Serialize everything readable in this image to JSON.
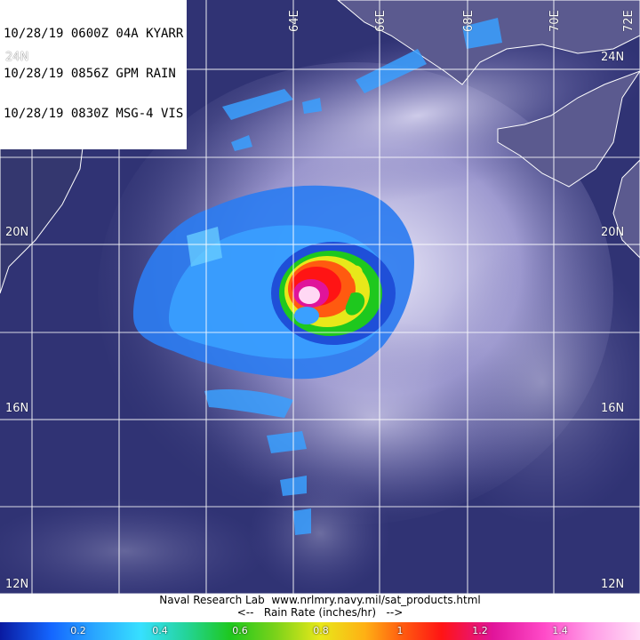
{
  "header": {
    "lines": [
      "10/28/19 0600Z 04A KYARR",
      "10/28/19 0856Z GPM RAIN",
      "10/28/19 0830Z MSG-4 VIS"
    ]
  },
  "latitude_labels": [
    "24N",
    "24N",
    "20N",
    "20N",
    "16N",
    "16N",
    "12N",
    "12N"
  ],
  "longitude_labels": [
    "64E",
    "66E",
    "68E",
    "70E",
    "72E"
  ],
  "credit": {
    "source": "Naval Research Lab  www.nrlmry.navy.mil/sat_products.html",
    "scale_title": "<--   Rain Rate (inches/hr)   -->"
  },
  "colorbar": {
    "ticks": [
      "0.2",
      "0.4",
      "0.6",
      "0.8",
      "1",
      "1.2",
      "1.4"
    ]
  },
  "colors": {
    "ocean": "#2b2f6e",
    "cloud": "#c9c6e6",
    "coastline": "#ffffff",
    "grid": "#ffffff"
  }
}
